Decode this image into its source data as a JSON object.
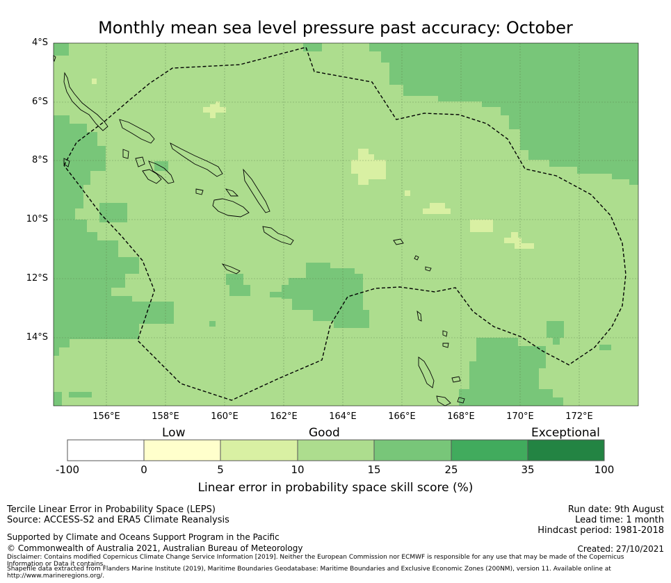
{
  "title": "Monthly mean sea level pressure past accuracy: October",
  "map": {
    "lat_labels": [
      "4°S",
      "6°S",
      "8°S",
      "10°S",
      "12°S",
      "14°S"
    ],
    "lon_labels": [
      "156°E",
      "158°E",
      "160°E",
      "162°E",
      "164°E",
      "166°E",
      "168°E",
      "170°E",
      "172°E"
    ],
    "extent": {
      "lon": [
        154.2,
        174.0
      ],
      "lat": [
        -16.3,
        -4.0
      ]
    },
    "colors": {
      "c0": "#ffffff",
      "c5": "#ffffcc",
      "c10": "#d9f0a3",
      "c15": "#addd8e",
      "c25": "#78c679",
      "c35": "#41ab5d",
      "c100": "#238443"
    }
  },
  "colorbar": {
    "categories": {
      "low": "Low",
      "good": "Good",
      "exceptional": "Exceptional"
    },
    "ticks": [
      "-100",
      "0",
      "5",
      "10",
      "15",
      "25",
      "35",
      "100"
    ],
    "label": "Linear error in probability space skill score (%)"
  },
  "footer": {
    "left1": "Tercile Linear Error in Probability Space (LEPS)",
    "left2": "Source: ACCESS-S2 and ERA5 Climate Reanalysis",
    "right1": "Run date: 9th August",
    "right2": "Lead time: 1 month",
    "right3": "Hindcast period: 1981-2018",
    "support": "Supported by Climate and Oceans Support Program in the Pacific",
    "copyright": "© Commonwealth of Australia 2021, Australian Bureau of Meteorology",
    "created": "Created: 27/10/2021",
    "disclaimer": "Disclaimer: Contains modified Copernicus Climate Change Service Information [2019]. Neither the European Commission nor ECMWF is responsible for any use that may be made of the Copernicus Information or Data it contains.",
    "shapefile": "Shapefile data extracted from Flanders Marine Institute (2019), Maritime Boundaries Geodatabase: Maritime Boundaries and Exclusive Economic Zones (200NM), version 11. Available online at http://www.marineregions.org/."
  }
}
